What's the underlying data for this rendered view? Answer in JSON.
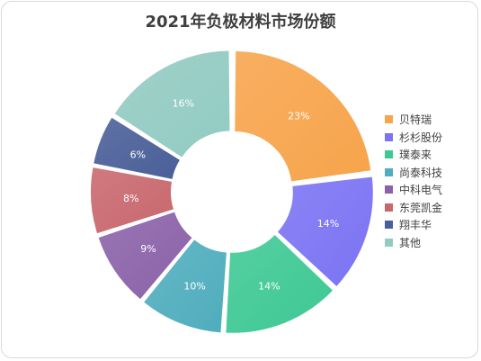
{
  "chart_data": {
    "type": "pie",
    "title": "2021年负极材料市场份额",
    "categories": [
      "贝特瑞",
      "杉杉股份",
      "璞泰来",
      "尚泰科技",
      "中科电气",
      "东莞凯金",
      "翔丰华",
      "其他"
    ],
    "values": [
      23,
      14,
      14,
      10,
      9,
      8,
      6,
      16
    ],
    "labels": [
      "23%",
      "14%",
      "14%",
      "10%",
      "9%",
      "8%",
      "6%",
      "16%"
    ],
    "colors": [
      "#f7a44b",
      "#7b73f3",
      "#3ec894",
      "#4fadbd",
      "#8b62a9",
      "#c8686e",
      "#4a5f99",
      "#92cbc2"
    ],
    "legend_position": "right"
  }
}
